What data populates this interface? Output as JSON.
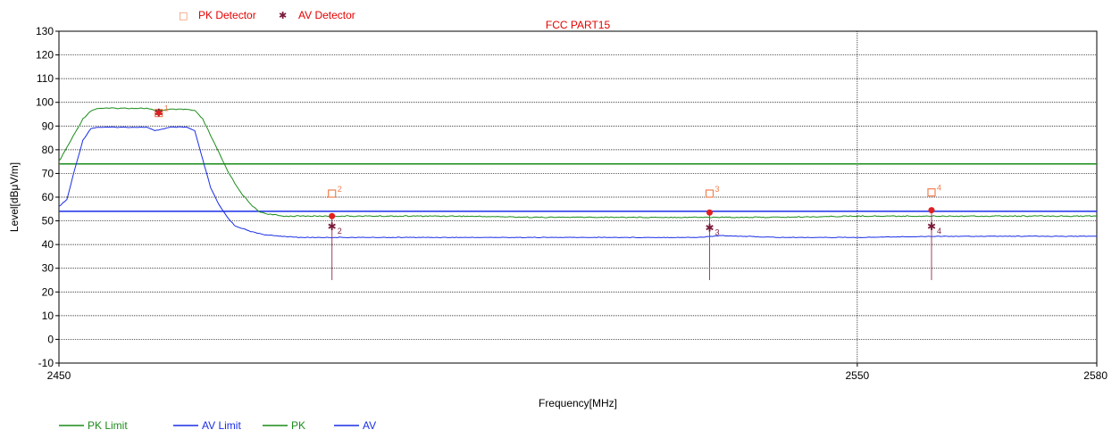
{
  "chart_data": {
    "type": "line",
    "title": "FCC PART15",
    "xlabel": "Frequency[MHz]",
    "ylabel": "Level[dBμV/m]",
    "xlim": [
      2450,
      2580
    ],
    "ylim": [
      -10,
      130
    ],
    "x_ticks": [
      2450,
      2550,
      2580
    ],
    "x_tick_labels": [
      "2450",
      "2550",
      "2580"
    ],
    "y_ticks": [
      -10,
      0,
      10,
      20,
      30,
      40,
      50,
      60,
      70,
      80,
      90,
      100,
      110,
      120,
      130
    ],
    "y_tick_labels": [
      "-10",
      "0",
      "10",
      "20",
      "30",
      "40",
      "50",
      "60",
      "70",
      "80",
      "90",
      "100",
      "110",
      "120",
      "130"
    ],
    "grid": true,
    "legend_position": "bottom-left",
    "detector_legend_position": "top-left",
    "colors": {
      "pk_limit": "#1a8c1a",
      "av_limit": "#1a2ee6",
      "pk": "#1a8c1a",
      "av": "#1a2ee6",
      "pk_detector": "#f08050",
      "av_detector": "#7a1a3a",
      "title": "#e60000",
      "marker_line": "#a04060",
      "marker_dot": "#e02020"
    },
    "detector_legend": [
      {
        "name": "PK Detector",
        "symbol": "□"
      },
      {
        "name": "AV Detector",
        "symbol": "✱"
      }
    ],
    "legend": [
      "PK Limit",
      "AV Limit",
      "PK",
      "AV"
    ],
    "series": [
      {
        "name": "PK Limit",
        "x": [
          2450,
          2580
        ],
        "y": [
          74,
          74
        ]
      },
      {
        "name": "AV Limit",
        "x": [
          2450,
          2580
        ],
        "y": [
          54,
          54
        ]
      },
      {
        "name": "PK",
        "x": [
          2450,
          2451,
          2452,
          2453,
          2454,
          2455,
          2458,
          2461,
          2462,
          2464,
          2466,
          2467,
          2468,
          2469,
          2470,
          2471,
          2472,
          2473,
          2474,
          2475,
          2476,
          2477,
          2478,
          2479,
          2480,
          2490,
          2500,
          2510,
          2520,
          2530,
          2540,
          2550,
          2560,
          2570,
          2580
        ],
        "y": [
          75,
          81,
          87,
          93,
          96.5,
          97.5,
          97.5,
          97.5,
          96.5,
          97,
          97,
          96.5,
          93,
          86,
          79,
          72,
          66,
          61,
          57,
          54,
          53,
          52.5,
          52,
          52,
          52,
          52,
          52,
          51.5,
          51.5,
          51.5,
          51.5,
          52,
          52,
          52,
          52
        ]
      },
      {
        "name": "AV",
        "x": [
          2450,
          2451,
          2452,
          2453,
          2454,
          2455,
          2458,
          2461,
          2462,
          2464,
          2466,
          2467,
          2468,
          2469,
          2470,
          2471,
          2472,
          2474,
          2476,
          2478,
          2480,
          2490,
          2500,
          2510,
          2520,
          2530,
          2533,
          2540,
          2550,
          2560,
          2570,
          2580
        ],
        "y": [
          56,
          59,
          72,
          84,
          89,
          89.5,
          89.5,
          89.5,
          88,
          89.5,
          89.5,
          88,
          76,
          64,
          57,
          52,
          48,
          45.5,
          44,
          43.5,
          43,
          43,
          43,
          43,
          43,
          43,
          43.8,
          43,
          43,
          43.5,
          43.5,
          43.5
        ]
      }
    ],
    "markers": [
      {
        "id": "1",
        "x": 2462.5,
        "pk": 95.5,
        "av": 95.5
      },
      {
        "id": "2",
        "x": 2484.2,
        "pk": 61.5,
        "av": 47.5,
        "measured": 52
      },
      {
        "id": "3",
        "x": 2531.5,
        "pk": 61.5,
        "av": 47.0,
        "measured": 53.5
      },
      {
        "id": "4",
        "x": 2559.3,
        "pk": 62.0,
        "av": 47.5,
        "measured": 54.5
      }
    ]
  }
}
